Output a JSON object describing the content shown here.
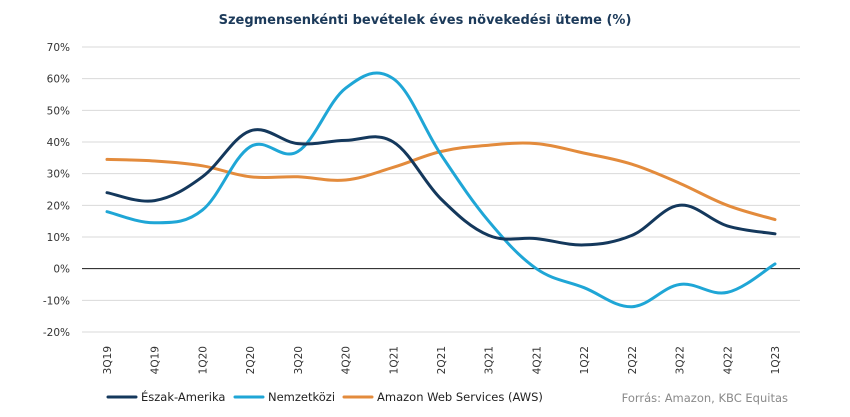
{
  "chart_data": {
    "type": "line",
    "title": "Szegmensenkénti bevételek éves növekedési üteme (%)",
    "xlabel": "",
    "ylabel": "",
    "categories": [
      "3Q19",
      "4Q19",
      "1Q20",
      "2Q20",
      "3Q20",
      "4Q20",
      "1Q21",
      "2Q21",
      "3Q21",
      "4Q21",
      "1Q22",
      "2Q22",
      "3Q22",
      "4Q22",
      "1Q23"
    ],
    "ylim": [
      -20,
      70
    ],
    "yticks": [
      -20,
      -10,
      0,
      10,
      20,
      30,
      40,
      50,
      60,
      70
    ],
    "ytick_labels": [
      "-20%",
      "-10%",
      "0%",
      "10%",
      "20%",
      "30%",
      "40%",
      "50%",
      "60%",
      "70%"
    ],
    "grid": true,
    "legend_position": "bottom",
    "series": [
      {
        "name": "Észak-Amerika",
        "color": "#14385c",
        "values": [
          24,
          21.5,
          29,
          43.5,
          39.5,
          40.5,
          40,
          22,
          10.5,
          9.5,
          7.5,
          10.5,
          20,
          13.5,
          11
        ]
      },
      {
        "name": "Nemzetközi",
        "color": "#1fa6d6",
        "values": [
          18,
          14.5,
          18.5,
          38.5,
          37,
          57,
          60,
          36,
          15,
          0,
          -6,
          -12,
          -5,
          -7.5,
          1.5
        ]
      },
      {
        "name": "Amazon Web Services (AWS)",
        "color": "#e38b3c",
        "values": [
          34.5,
          34,
          32.5,
          29,
          29,
          28,
          32,
          37,
          39,
          39.5,
          36.5,
          33,
          27,
          20,
          15.5
        ]
      }
    ],
    "source": "Forrás: Amazon, KBC Equitas"
  }
}
